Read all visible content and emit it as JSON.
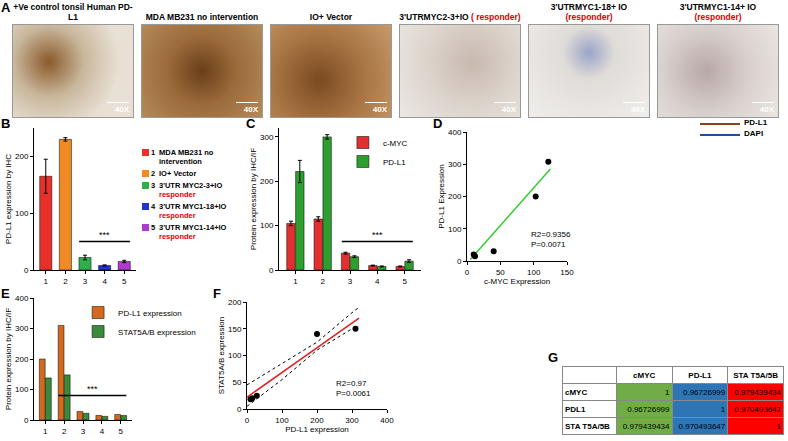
{
  "panel_a": {
    "letter": "A",
    "images": [
      {
        "title": "+Ve control tonsil Human PD-L1",
        "magnification": "40X"
      },
      {
        "title": "MDA MB231 no intervention",
        "magnification": "40X"
      },
      {
        "title": "IO+ Vector",
        "magnification": "40X"
      },
      {
        "title": "3'UTRMYC2-3+IO",
        "note": "( responder)",
        "magnification": "40X"
      },
      {
        "title": "3'UTRMYC1-18+ IO",
        "note": "(responder)",
        "magnification": "40X"
      },
      {
        "title": "3'UTRMYC1-14+ IO",
        "note": "(responder)",
        "magnification": "40X"
      }
    ],
    "legend": [
      {
        "name": "PD-L1",
        "color": "#8b4513"
      },
      {
        "name": "DAPI",
        "color": "#1f4e99"
      }
    ]
  },
  "chart_data": [
    {
      "letter": "B",
      "type": "bar",
      "ylabel": "PD-L1 expression by IHC",
      "categories": [
        "1",
        "2",
        "3",
        "4",
        "5"
      ],
      "values": [
        165,
        230,
        22,
        8,
        15
      ],
      "errors": [
        30,
        3,
        4,
        1,
        2
      ],
      "colors": [
        "#e8302a",
        "#f08a24",
        "#2fae4a",
        "#2233cc",
        "#b03ad0"
      ],
      "ylim": [
        0,
        250
      ],
      "yticks": [
        0,
        100,
        200
      ],
      "annotation": {
        "text": "***",
        "from": "3",
        "to": "5"
      },
      "category_legend": [
        {
          "text": "MDA MB231 no intervention"
        },
        {
          "text": "IO+ Vector"
        },
        {
          "text": "3'UTR MYC2-3+IO",
          "note": "responder"
        },
        {
          "text": "3'UTR MYC1-18+IO",
          "note": "responder"
        },
        {
          "text": "3'UTR MYC1-14+IO",
          "note": "responder"
        }
      ]
    },
    {
      "letter": "C",
      "type": "bar",
      "ylabel": "Protein expression by IHC/IF",
      "categories": [
        "1",
        "2",
        "3",
        "4",
        "5"
      ],
      "series": [
        {
          "name": "c-MYC",
          "color": "#e03030",
          "values": [
            105,
            115,
            38,
            10,
            8
          ],
          "errors": [
            5,
            5,
            2,
            1,
            1
          ]
        },
        {
          "name": "PD-L1",
          "color": "#2e9e2e",
          "values": [
            222,
            300,
            30,
            8,
            20
          ],
          "errors": [
            25,
            5,
            2,
            1,
            3
          ]
        }
      ],
      "ylim": [
        0,
        320
      ],
      "yticks": [
        0,
        100,
        200,
        300
      ],
      "annotation": {
        "text": "***",
        "from": "3",
        "to": "5"
      }
    },
    {
      "letter": "D",
      "type": "scatter",
      "xlabel": "c-MYC Expression",
      "ylabel": "PD-L1 Expression",
      "x": [
        10,
        12,
        40,
        103,
        122
      ],
      "values": [
        20,
        15,
        30,
        200,
        308
      ],
      "xlim": [
        0,
        150
      ],
      "xticks": [
        0,
        50,
        100,
        150
      ],
      "ylim": [
        0,
        400
      ],
      "yticks": [
        0,
        100,
        200,
        300,
        400
      ],
      "fit": {
        "x": [
          5,
          125
        ],
        "y": [
          5,
          285
        ],
        "color": "#33cc33"
      },
      "text_lines": [
        "R2=0.9356",
        "P=0.0071"
      ]
    },
    {
      "letter": "E",
      "type": "bar",
      "ylabel": "Protein expression by IHC/IF",
      "categories": [
        "1",
        "2",
        "3",
        "4",
        "5"
      ],
      "series": [
        {
          "name": "PD-L1 expression",
          "color": "#d2691e",
          "values": [
            200,
            310,
            28,
            15,
            18
          ]
        },
        {
          "name": "STAT5A/B expression",
          "color": "#3a8a3a",
          "values": [
            138,
            148,
            22,
            12,
            15
          ]
        }
      ],
      "ylim": [
        0,
        400
      ],
      "yticks": [
        0,
        100,
        200,
        300,
        400
      ],
      "annotation": {
        "text": "***",
        "from": "2",
        "to": "5"
      }
    },
    {
      "letter": "F",
      "type": "scatter",
      "xlabel": "PD-L1 expression",
      "ylabel": "STAT5A/B expression",
      "x": [
        10,
        15,
        28,
        200,
        310
      ],
      "values": [
        18,
        20,
        25,
        140,
        150
      ],
      "xlim": [
        0,
        400
      ],
      "xticks": [
        0,
        100,
        200,
        300,
        400
      ],
      "ylim": [
        0,
        200
      ],
      "yticks": [
        0,
        50,
        100,
        150,
        200
      ],
      "fit": {
        "x": [
          0,
          320
        ],
        "y": [
          22,
          170
        ],
        "color": "#e02020"
      },
      "band_upper": {
        "x": [
          0,
          100,
          200,
          300,
          320
        ],
        "y": [
          45,
          85,
          125,
          180,
          190
        ]
      },
      "band_lower": {
        "x": [
          0,
          100,
          200,
          300,
          320
        ],
        "y": [
          5,
          55,
          110,
          150,
          155
        ]
      },
      "text_lines": [
        "R2=0.97",
        "P=0.0061"
      ]
    }
  ],
  "table": {
    "letter": "G",
    "columns": [
      "cMYC",
      "PD-L1",
      "STA T5A/5B"
    ],
    "column_colors": [
      "#70ad47",
      "#2e75b6",
      "#ff0000"
    ],
    "rows": [
      {
        "label": "cMYC",
        "values": [
          1,
          0.96726999,
          0.979439434
        ]
      },
      {
        "label": "PDL1",
        "values": [
          0.96726999,
          1,
          0.970493647
        ]
      },
      {
        "label": "STA T5A/5B",
        "values": [
          0.979439434,
          0.970493647,
          1
        ]
      }
    ]
  }
}
